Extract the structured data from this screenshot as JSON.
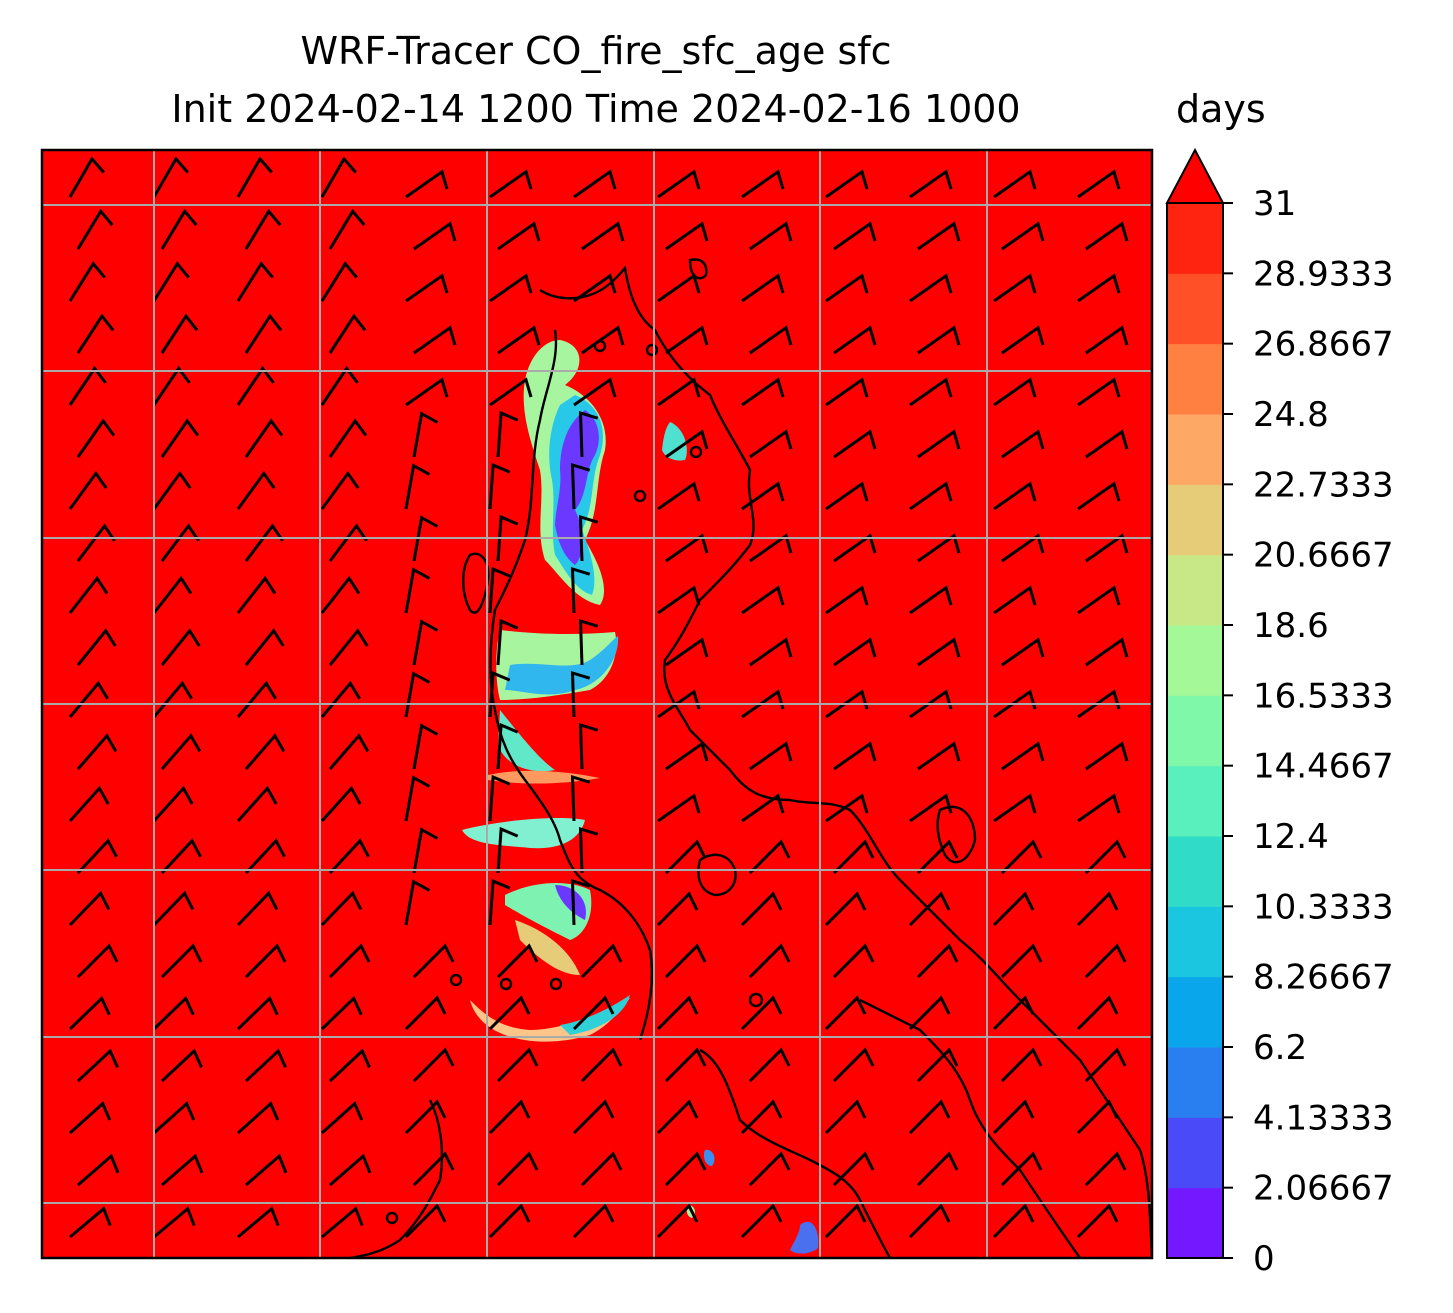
{
  "title": {
    "line1": "WRF-Tracer CO_fire_sfc_age sfc",
    "line2": "Init 2024-02-14 1200 Time 2024-02-16 1000"
  },
  "colorbar": {
    "unit": "days",
    "extend": "max",
    "levels": [
      0,
      2.06667,
      4.13333,
      6.2,
      8.26667,
      10.3333,
      12.4,
      14.4667,
      16.5333,
      18.6,
      20.6667,
      22.7333,
      24.8,
      26.8667,
      28.9333,
      31
    ],
    "tick_labels": [
      "0",
      "2.06667",
      "4.13333",
      "6.2",
      "8.26667",
      "10.3333",
      "12.4",
      "14.4667",
      "16.5333",
      "18.6",
      "20.6667",
      "22.7333",
      "24.8",
      "26.8667",
      "28.9333",
      "31"
    ],
    "colors": [
      "#7318ff",
      "#4a4af8",
      "#2a7ff0",
      "#0aa6ec",
      "#1ac6e0",
      "#30dcc8",
      "#5af0bd",
      "#80f8aa",
      "#a4f898",
      "#c8e888",
      "#e6cc78",
      "#fea866",
      "#ff8040",
      "#ff5028",
      "#ff2410",
      "#ff0000"
    ]
  },
  "map": {
    "background_value_color": "#ff0000",
    "gridline_color": "#aaaaaa",
    "coastline_color": "#000000",
    "barb_color": "#000000"
  }
}
